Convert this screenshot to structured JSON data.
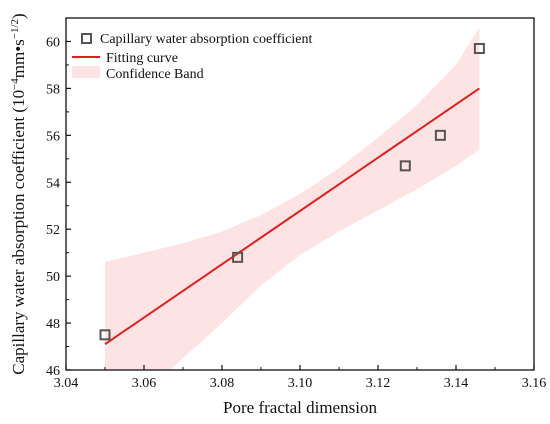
{
  "chart_data": {
    "type": "scatter",
    "xlabel": "Pore fractal dimension",
    "ylabel_main": "Capillary water absorption coefficient (10",
    "ylabel_exp1": "−4",
    "ylabel_mid": "mm•s",
    "ylabel_exp2": "−1/2",
    "ylabel_end": ")",
    "xlim": [
      3.04,
      3.16
    ],
    "ylim": [
      46,
      61
    ],
    "x_ticks": [
      3.04,
      3.06,
      3.08,
      3.1,
      3.12,
      3.14,
      3.16
    ],
    "x_tick_labels": [
      "3.04",
      "3.06",
      "3.08",
      "3.10",
      "3.12",
      "3.14",
      "3.16"
    ],
    "y_ticks": [
      46,
      48,
      50,
      52,
      54,
      56,
      58,
      60
    ],
    "y_tick_labels": [
      "46",
      "48",
      "50",
      "52",
      "54",
      "56",
      "58",
      "60"
    ],
    "series": [
      {
        "name": "Capillary water absorption coefficient",
        "marker": "open-square",
        "color": "#555555",
        "x": [
          3.05,
          3.084,
          3.127,
          3.136,
          3.146
        ],
        "y": [
          47.5,
          50.8,
          54.7,
          56.0,
          59.7
        ]
      }
    ],
    "fit": {
      "name": "Fitting curve",
      "color": "#e02020",
      "x": [
        3.05,
        3.146
      ],
      "y": [
        47.1,
        58.0
      ]
    },
    "confidence_band": {
      "name": "Confidence Band",
      "color": "#fde3e3",
      "x": [
        3.05,
        3.06,
        3.07,
        3.08,
        3.09,
        3.1,
        3.11,
        3.12,
        3.13,
        3.14,
        3.146
      ],
      "upper": [
        50.6,
        51.0,
        51.4,
        51.9,
        52.6,
        53.5,
        54.6,
        55.9,
        57.3,
        59.0,
        60.6
      ],
      "lower": [
        43.6,
        45.0,
        46.5,
        48.0,
        49.6,
        50.9,
        51.9,
        52.8,
        53.7,
        54.7,
        55.4
      ]
    },
    "legend_position": "top-left",
    "grid": false
  }
}
